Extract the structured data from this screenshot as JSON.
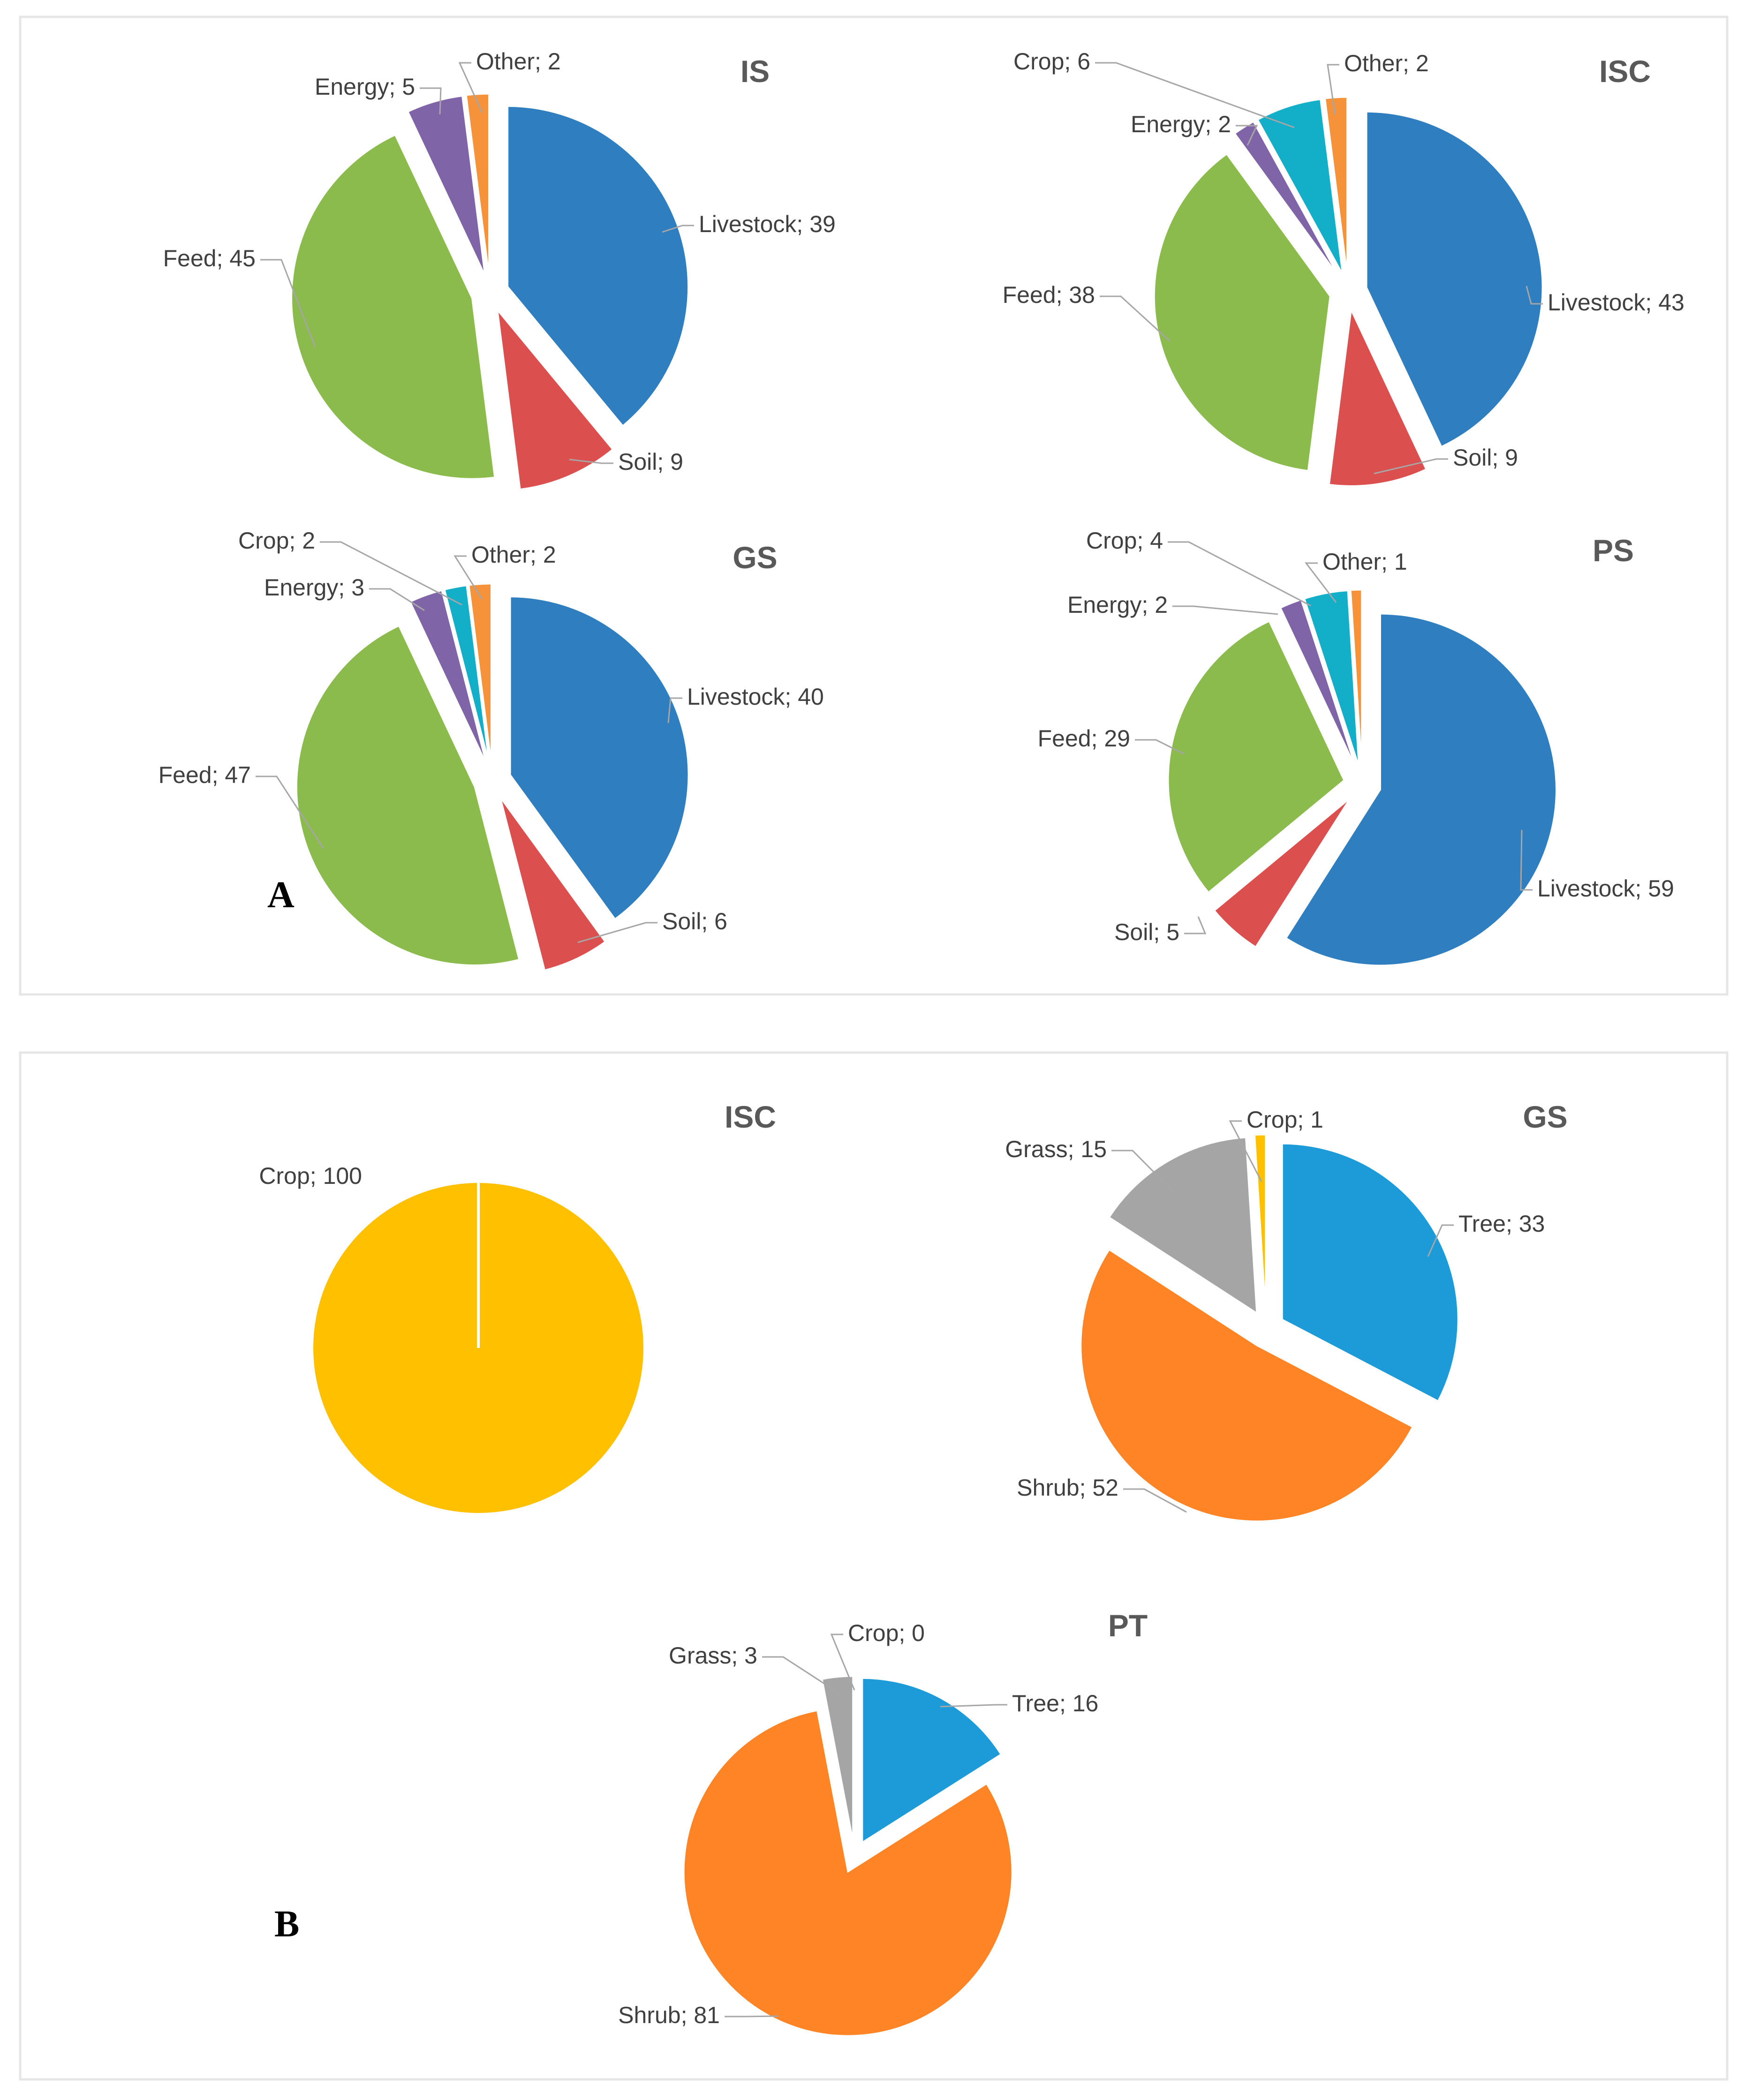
{
  "panels": [
    {
      "label": "A"
    },
    {
      "label": "B"
    }
  ],
  "chart_data": [
    {
      "type": "pie",
      "panel": "A",
      "title": "IS",
      "categories": [
        "Livestock",
        "Soil",
        "Feed",
        "Energy",
        "Other"
      ],
      "values": [
        39,
        9,
        45,
        5,
        2
      ],
      "colors": [
        "#2e7ec0",
        "#dc4f4f",
        "#8bbb4c",
        "#8064a8",
        "#f5923a"
      ]
    },
    {
      "type": "pie",
      "panel": "A",
      "title": "ISC",
      "categories": [
        "Livestock",
        "Soil",
        "Feed",
        "Energy",
        "Crop",
        "Other"
      ],
      "values": [
        43,
        9,
        38,
        2,
        6,
        2
      ],
      "colors": [
        "#2e7ec0",
        "#dc4f4f",
        "#8bbb4c",
        "#8064a8",
        "#13aec8",
        "#f5923a"
      ]
    },
    {
      "type": "pie",
      "panel": "A",
      "title": "GS",
      "categories": [
        "Livestock",
        "Soil",
        "Feed",
        "Energy",
        "Crop",
        "Other"
      ],
      "values": [
        40,
        6,
        47,
        3,
        2,
        2
      ],
      "colors": [
        "#2e7ec0",
        "#dc4f4f",
        "#8bbb4c",
        "#8064a8",
        "#13aec8",
        "#f5923a"
      ]
    },
    {
      "type": "pie",
      "panel": "A",
      "title": "PS",
      "categories": [
        "Livestock",
        "Soil",
        "Feed",
        "Energy",
        "Crop",
        "Other"
      ],
      "values": [
        59,
        5,
        29,
        2,
        4,
        1
      ],
      "colors": [
        "#2e7ec0",
        "#dc4f4f",
        "#8bbb4c",
        "#8064a8",
        "#13aec8",
        "#f5923a"
      ]
    },
    {
      "type": "pie",
      "panel": "B",
      "title": "ISC",
      "categories": [
        "Crop"
      ],
      "values": [
        100
      ],
      "colors": [
        "#ffc000"
      ]
    },
    {
      "type": "pie",
      "panel": "B",
      "title": "GS",
      "categories": [
        "Tree",
        "Shrub",
        "Grass",
        "Crop"
      ],
      "values": [
        33,
        52,
        15,
        1
      ],
      "colors": [
        "#1c9bd8",
        "#ff8426",
        "#a5a5a5",
        "#ffc000"
      ]
    },
    {
      "type": "pie",
      "panel": "B",
      "title": "PT",
      "categories": [
        "Tree",
        "Shrub",
        "Grass",
        "Crop"
      ],
      "values": [
        16,
        81,
        3,
        0
      ],
      "colors": [
        "#1c9bd8",
        "#ff8426",
        "#a5a5a5",
        "#ffc000"
      ]
    }
  ]
}
